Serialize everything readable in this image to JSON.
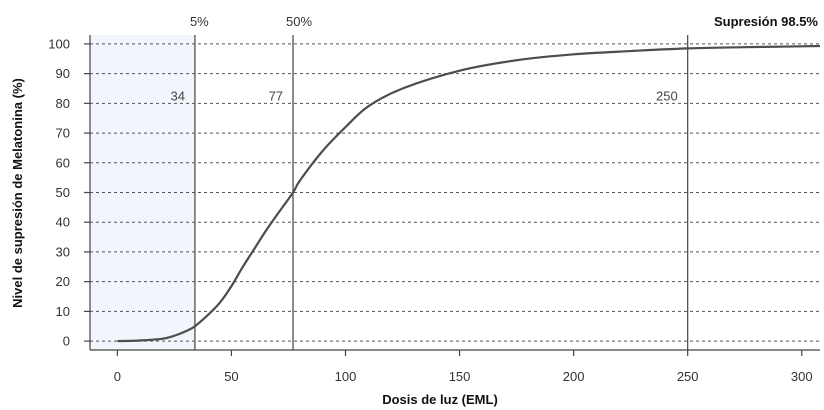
{
  "chart_data": {
    "type": "line",
    "xlabel": "Dosis de luz (EML)",
    "ylabel": "Nivel de supresión de Melatonina (%)",
    "xlim": [
      -12,
      308
    ],
    "ylim": [
      -3,
      103
    ],
    "x_ticks": [
      0,
      50,
      100,
      150,
      200,
      250,
      300
    ],
    "y_ticks": [
      0,
      10,
      20,
      30,
      40,
      50,
      60,
      70,
      80,
      90,
      100
    ],
    "grid": "horizontal dashed",
    "shaded_region": {
      "x_from": -12,
      "x_to": 34,
      "color": "#f2f5fb"
    },
    "reference_lines": [
      {
        "x": 34,
        "top_label": "5%",
        "value_label": "34"
      },
      {
        "x": 77,
        "top_label": "50%",
        "value_label": "77"
      },
      {
        "x": 250,
        "top_label": "Supresión 98.5%",
        "value_label": "250"
      }
    ],
    "series": [
      {
        "x": [
          0,
          10,
          20,
          25,
          30,
          34,
          40,
          45,
          50,
          55,
          60,
          65,
          70,
          77,
          80,
          90,
          100,
          110,
          125,
          150,
          175,
          200,
          225,
          250,
          275,
          300,
          308
        ],
        "y": [
          0,
          0.2,
          0.8,
          1.8,
          3.3,
          5,
          9,
          13,
          18.5,
          25,
          31,
          37,
          42.5,
          50,
          54,
          64,
          72,
          79,
          85,
          91,
          94.5,
          96.5,
          97.6,
          98.5,
          98.9,
          99.2,
          99.3
        ]
      }
    ],
    "colors": {
      "line": "#4d4d4d",
      "grid": "#555555",
      "shade": "#f2f5fb"
    }
  }
}
